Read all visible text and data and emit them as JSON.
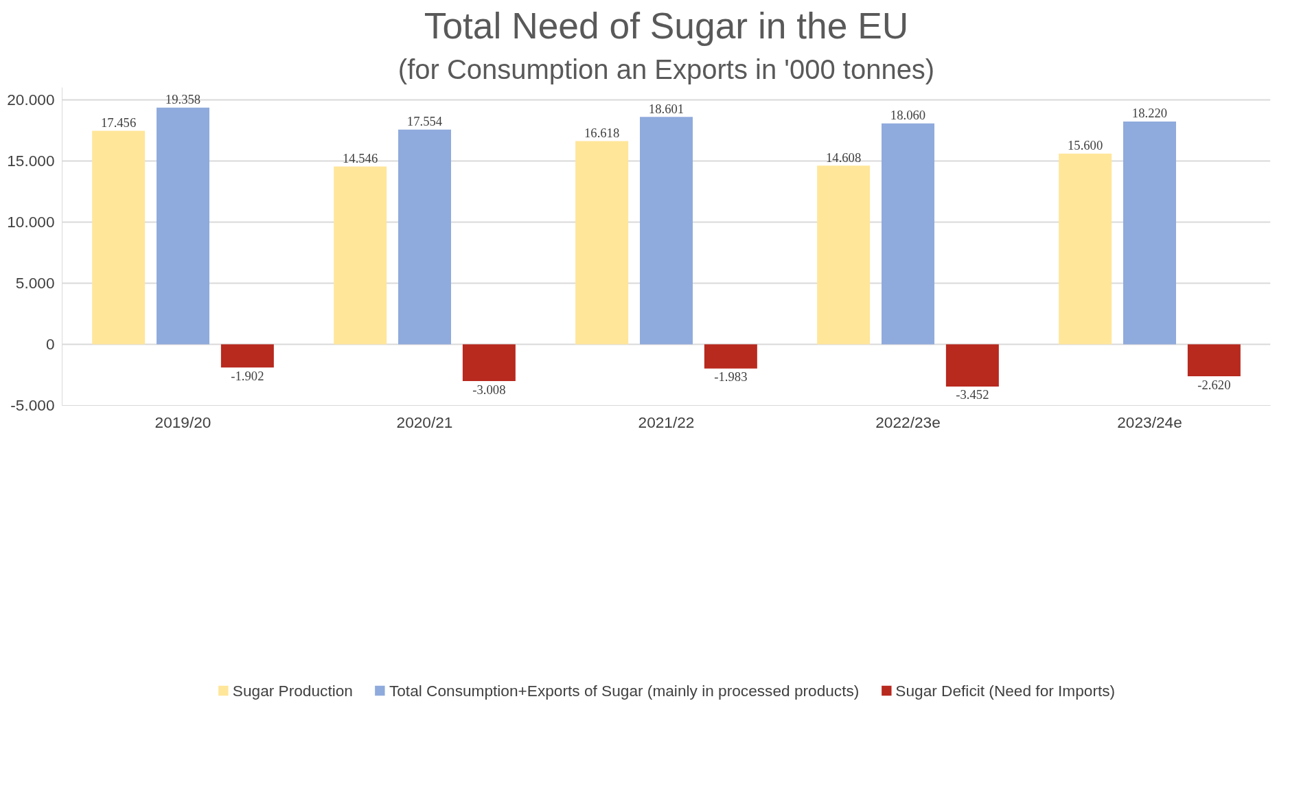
{
  "chart_data": {
    "type": "bar",
    "title": "Total Need of Sugar in the EU",
    "subtitle": "(for Consumption an Exports in '000 tonnes)",
    "categories": [
      "2019/20",
      "2020/21",
      "2021/22",
      "2022/23e",
      "2023/24e"
    ],
    "series": [
      {
        "name": "Sugar Production",
        "color": "#ffe699",
        "values": [
          17456,
          14546,
          16618,
          14608,
          15600
        ],
        "value_labels": [
          "17.456",
          "14.546",
          "16.618",
          "14.608",
          "15.600"
        ]
      },
      {
        "name": "Total Consumption+Exports of Sugar (mainly in processed products)",
        "color": "#8faadc",
        "values": [
          19358,
          17554,
          18601,
          18060,
          18220
        ],
        "value_labels": [
          "19.358",
          "17.554",
          "18.601",
          "18.060",
          "18.220"
        ]
      },
      {
        "name": "Sugar Deficit (Need for Imports)",
        "color": "#b8291e",
        "values": [
          -1902,
          -3008,
          -1983,
          -3452,
          -2620
        ],
        "value_labels": [
          "-1.902",
          "-3.008",
          "-1.983",
          "-3.452",
          "-2.620"
        ]
      }
    ],
    "ylim": [
      -5000,
      21000
    ],
    "yticks": [
      {
        "value": -5000,
        "label": "-5.000"
      },
      0,
      {
        "value": 5000,
        "label": "5.000"
      },
      {
        "value": 10000,
        "label": "10.000"
      },
      {
        "value": 15000,
        "label": "15.000"
      },
      {
        "value": 20000,
        "label": "20.000"
      }
    ],
    "grid": "y",
    "legend": "bottom"
  }
}
